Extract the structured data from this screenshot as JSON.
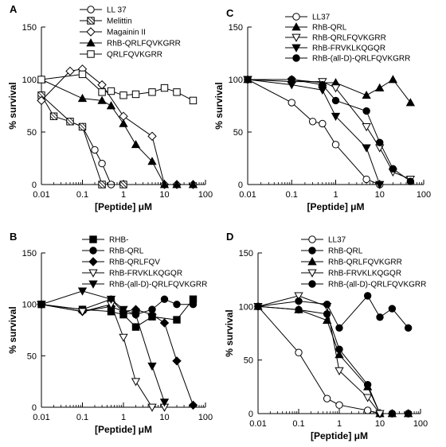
{
  "chart_data": [
    {
      "panel": "A",
      "type": "line",
      "xscale": "log",
      "xlim": [
        0.01,
        100
      ],
      "ylim": [
        0,
        150
      ],
      "xticks": [
        "0.01",
        "0.1",
        "1",
        "10",
        "100"
      ],
      "yticks": [
        "0",
        "50",
        "100",
        "150"
      ],
      "xlabel": "[Peptide] μM",
      "ylabel": "% survival",
      "series": [
        {
          "name": "LL 37",
          "marker": "circle-open",
          "x": [
            0.01,
            0.05,
            0.1,
            0.2,
            0.3,
            0.5
          ],
          "y": [
            85,
            60,
            55,
            33,
            20,
            0
          ]
        },
        {
          "name": "Melittin",
          "marker": "square-hatched",
          "x": [
            0.01,
            0.02,
            0.05,
            0.1,
            0.3,
            1
          ],
          "y": [
            85,
            65,
            60,
            55,
            0,
            0
          ]
        },
        {
          "name": "Magainin II",
          "marker": "diamond-open",
          "x": [
            0.01,
            0.05,
            0.1,
            0.3,
            1,
            5,
            10,
            20,
            50
          ],
          "y": [
            80,
            108,
            110,
            95,
            65,
            46,
            0,
            0,
            0
          ]
        },
        {
          "name": "RhB-QRLFQVKGRR",
          "marker": "triangle-filled",
          "x": [
            0.01,
            0.1,
            0.3,
            0.5,
            1,
            2,
            5,
            10,
            20,
            50
          ],
          "y": [
            100,
            82,
            80,
            75,
            58,
            38,
            22,
            0,
            0,
            0
          ]
        },
        {
          "name": "QRLFQVKGRR",
          "marker": "square-open",
          "x": [
            0.01,
            0.1,
            0.3,
            0.5,
            1,
            2,
            5,
            10,
            20,
            50
          ],
          "y": [
            100,
            105,
            88,
            89,
            85,
            86,
            88,
            92,
            88,
            80
          ]
        }
      ]
    },
    {
      "panel": "C",
      "type": "line",
      "xscale": "log",
      "xlim": [
        0.01,
        100
      ],
      "ylim": [
        0,
        150
      ],
      "xticks": [
        "0.01",
        "0.1",
        "1",
        "10",
        "100"
      ],
      "yticks": [
        "0",
        "50",
        "100",
        "150"
      ],
      "xlabel": "[Peptide] μM",
      "ylabel": "% survival",
      "series": [
        {
          "name": "LL37",
          "marker": "circle-open",
          "x": [
            0.01,
            0.1,
            0.3,
            0.5,
            1,
            5,
            10
          ],
          "y": [
            100,
            78,
            60,
            58,
            38,
            5,
            0
          ]
        },
        {
          "name": "RhB-QRL",
          "marker": "triangle-filled",
          "x": [
            0.01,
            0.1,
            0.5,
            1,
            5,
            10,
            20,
            50
          ],
          "y": [
            100,
            100,
            97,
            97,
            85,
            92,
            100,
            78
          ]
        },
        {
          "name": "RhB-QRLFQVKGRR",
          "marker": "triangle-down-open",
          "x": [
            0.01,
            0.1,
            0.5,
            1,
            5,
            10,
            20,
            50
          ],
          "y": [
            100,
            98,
            98,
            92,
            55,
            35,
            12,
            5
          ]
        },
        {
          "name": "RhB-FRVKLKQGQR",
          "marker": "triangle-down-filled",
          "x": [
            0.01,
            0.1,
            0.5,
            1,
            5,
            10
          ],
          "y": [
            100,
            95,
            90,
            65,
            35,
            0
          ]
        },
        {
          "name": "RhB-(all-D)-QRLFQVKGRR",
          "marker": "circle-filled",
          "x": [
            0.01,
            0.1,
            0.5,
            1,
            5,
            10,
            20,
            50
          ],
          "y": [
            100,
            100,
            95,
            80,
            70,
            40,
            15,
            3
          ]
        }
      ]
    },
    {
      "panel": "B",
      "type": "line",
      "xscale": "log",
      "xlim": [
        0.01,
        100
      ],
      "ylim": [
        0,
        150
      ],
      "xticks": [
        "0.01",
        "0.1",
        "1",
        "10",
        "100"
      ],
      "yticks": [
        "0",
        "50",
        "100",
        "150"
      ],
      "xlabel": "[Peptide] μM",
      "ylabel": "% survival",
      "series": [
        {
          "name": "RHB-",
          "marker": "square-filled",
          "x": [
            0.01,
            0.1,
            0.5,
            1,
            2,
            5,
            20,
            50
          ],
          "y": [
            100,
            95,
            93,
            90,
            78,
            88,
            85,
            105
          ]
        },
        {
          "name": "RhB-QRL",
          "marker": "circle-filled",
          "x": [
            0.01,
            0.1,
            0.5,
            1,
            2,
            5,
            10,
            20,
            50
          ],
          "y": [
            100,
            95,
            105,
            92,
            90,
            95,
            105,
            100,
            100
          ]
        },
        {
          "name": "RhB-QRLFQV",
          "marker": "diamond-filled",
          "x": [
            0.01,
            0.1,
            0.5,
            1,
            2,
            5,
            10,
            20,
            50
          ],
          "y": [
            100,
            93,
            98,
            93,
            95,
            90,
            82,
            45,
            2
          ]
        },
        {
          "name": "RhB-FRVKLKQGQR",
          "marker": "triangle-down-open",
          "x": [
            0.01,
            0.1,
            0.5,
            1,
            2,
            5,
            10
          ],
          "y": [
            100,
            93,
            100,
            68,
            25,
            0,
            0
          ]
        },
        {
          "name": "RhB-(all-D)-QRLFQVKGRR",
          "marker": "triangle-down-filled",
          "x": [
            0.01,
            0.1,
            0.5,
            1,
            2,
            5,
            10
          ],
          "y": [
            100,
            113,
            105,
            95,
            90,
            40,
            5
          ]
        }
      ]
    },
    {
      "panel": "D",
      "type": "line",
      "xscale": "log",
      "xlim": [
        0.01,
        100
      ],
      "ylim": [
        0,
        150
      ],
      "xticks": [
        "0.01",
        "0.1",
        "1",
        "10",
        "100"
      ],
      "yticks": [
        "0",
        "50",
        "100",
        "150"
      ],
      "xlabel": "[Peptide] μM",
      "ylabel": "% survival",
      "series": [
        {
          "name": "LL37",
          "marker": "circle-open",
          "x": [
            0.01,
            0.1,
            0.5,
            1,
            5,
            10,
            20,
            50
          ],
          "y": [
            100,
            57,
            14,
            8,
            3,
            0,
            0,
            0
          ]
        },
        {
          "name": "RhB-QRL",
          "marker": "circle-filled",
          "x": [
            0.01,
            0.1,
            0.5,
            1,
            5,
            10,
            20,
            50
          ],
          "y": [
            100,
            97,
            93,
            60,
            27,
            0,
            0,
            0
          ]
        },
        {
          "name": "RhB-QRLFQVKGRR",
          "marker": "triangle-filled",
          "x": [
            0.01,
            0.1,
            0.5,
            1,
            5,
            10,
            20,
            50
          ],
          "y": [
            100,
            97,
            87,
            55,
            25,
            0,
            0,
            0
          ]
        },
        {
          "name": "RhB-FRVKLKQGQR",
          "marker": "triangle-down-open",
          "x": [
            0.01,
            0.1,
            0.5,
            1,
            5,
            10
          ],
          "y": [
            100,
            110,
            100,
            40,
            15,
            0
          ]
        },
        {
          "name": "RhB-(all-D)-QRLFQVKGRR",
          "marker": "circle-filled",
          "x": [
            0.01,
            0.1,
            0.5,
            1,
            5,
            10,
            20,
            50
          ],
          "y": [
            100,
            105,
            102,
            80,
            110,
            90,
            98,
            80
          ]
        }
      ]
    }
  ]
}
